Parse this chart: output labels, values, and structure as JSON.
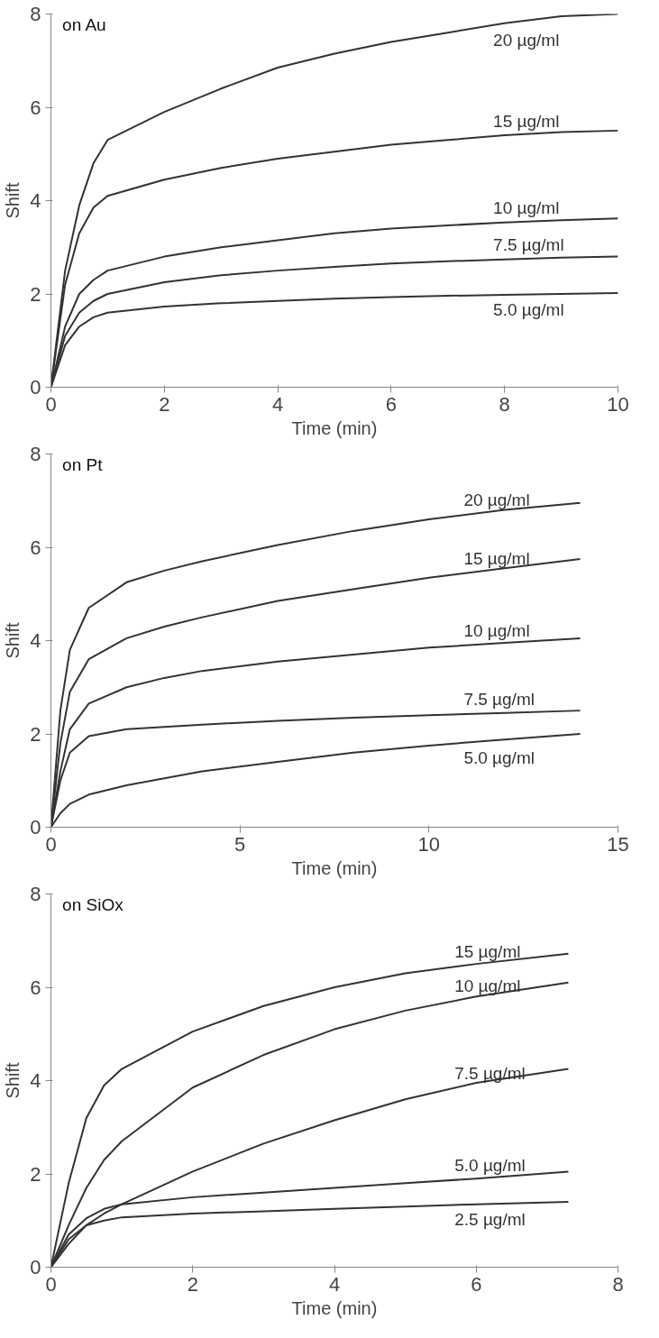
{
  "chart_data": [
    {
      "type": "line",
      "xlabel": "Time (min)",
      "ylabel": "Shift",
      "annotations": [
        "on Au"
      ],
      "xlim": [
        0,
        10
      ],
      "ylim": [
        0,
        8
      ],
      "xticks": [
        0,
        2,
        4,
        6,
        8,
        10
      ],
      "yticks": [
        0,
        2,
        4,
        6,
        8
      ],
      "grid": false,
      "x": [
        0,
        0.25,
        0.5,
        0.75,
        1,
        2,
        3,
        4,
        5,
        6,
        7,
        8,
        9,
        10
      ],
      "series": [
        {
          "name": "20 µg/ml",
          "color": "#333333",
          "values": [
            0,
            2.5,
            3.9,
            4.8,
            5.3,
            5.9,
            6.4,
            6.85,
            7.15,
            7.4,
            7.6,
            7.8,
            7.95,
            8.0
          ]
        },
        {
          "name": "15 µg/ml",
          "color": "#333333",
          "values": [
            0,
            2.2,
            3.3,
            3.85,
            4.1,
            4.45,
            4.7,
            4.9,
            5.05,
            5.2,
            5.3,
            5.4,
            5.47,
            5.5
          ]
        },
        {
          "name": "10 µg/ml",
          "color": "#333333",
          "values": [
            0,
            1.3,
            2.0,
            2.3,
            2.5,
            2.8,
            3.0,
            3.15,
            3.3,
            3.4,
            3.47,
            3.53,
            3.58,
            3.62
          ]
        },
        {
          "name": "7.5 µg/ml",
          "color": "#333333",
          "values": [
            0,
            1.1,
            1.6,
            1.85,
            2.0,
            2.25,
            2.4,
            2.5,
            2.58,
            2.65,
            2.7,
            2.74,
            2.78,
            2.8
          ]
        },
        {
          "name": "5.0 µg/ml",
          "color": "#333333",
          "values": [
            0,
            0.9,
            1.3,
            1.5,
            1.6,
            1.73,
            1.8,
            1.85,
            1.9,
            1.93,
            1.96,
            1.98,
            2.0,
            2.02
          ]
        }
      ]
    },
    {
      "type": "line",
      "xlabel": "Time (min)",
      "ylabel": "Shift",
      "annotations": [
        "on Pt"
      ],
      "xlim": [
        0,
        15
      ],
      "ylim": [
        0,
        8
      ],
      "xticks": [
        0,
        5,
        10,
        15
      ],
      "yticks": [
        0,
        2,
        4,
        6,
        8
      ],
      "grid": false,
      "x": [
        0,
        0.25,
        0.5,
        1,
        2,
        3,
        4,
        6,
        8,
        10,
        12,
        14
      ],
      "series": [
        {
          "name": "20 µg/ml",
          "color": "#333333",
          "values": [
            0,
            2.5,
            3.8,
            4.7,
            5.25,
            5.5,
            5.7,
            6.05,
            6.35,
            6.6,
            6.8,
            6.95
          ]
        },
        {
          "name": "15 µg/ml",
          "color": "#333333",
          "values": [
            0,
            1.8,
            2.9,
            3.6,
            4.05,
            4.3,
            4.5,
            4.85,
            5.1,
            5.35,
            5.55,
            5.75
          ]
        },
        {
          "name": "10 µg/ml",
          "color": "#333333",
          "values": [
            0,
            1.2,
            2.1,
            2.65,
            3.0,
            3.2,
            3.35,
            3.55,
            3.7,
            3.85,
            3.95,
            4.05
          ]
        },
        {
          "name": "7.5 µg/ml",
          "color": "#333333",
          "values": [
            0,
            1.0,
            1.6,
            1.95,
            2.1,
            2.15,
            2.2,
            2.28,
            2.35,
            2.4,
            2.45,
            2.5
          ]
        },
        {
          "name": "5.0 µg/ml",
          "color": "#333333",
          "values": [
            0,
            0.3,
            0.5,
            0.7,
            0.9,
            1.05,
            1.2,
            1.4,
            1.6,
            1.75,
            1.88,
            2.0
          ]
        }
      ]
    },
    {
      "type": "line",
      "xlabel": "Time (min)",
      "ylabel": "Shift",
      "annotations": [
        "on SiOx"
      ],
      "xlim": [
        0,
        8
      ],
      "ylim": [
        0,
        8
      ],
      "xticks": [
        0,
        2,
        4,
        6,
        8
      ],
      "yticks": [
        0,
        2,
        4,
        6,
        8
      ],
      "grid": false,
      "x": [
        0,
        0.25,
        0.5,
        0.75,
        1,
        2,
        3,
        4,
        5,
        6,
        7.3
      ],
      "series": [
        {
          "name": "15 µg/ml",
          "color": "#333333",
          "values": [
            0,
            1.8,
            3.2,
            3.9,
            4.25,
            5.05,
            5.6,
            6.0,
            6.3,
            6.5,
            6.72
          ]
        },
        {
          "name": "10 µg/ml",
          "color": "#333333",
          "values": [
            0,
            0.9,
            1.7,
            2.3,
            2.7,
            3.85,
            4.55,
            5.1,
            5.5,
            5.8,
            6.1
          ]
        },
        {
          "name": "7.5 µg/ml",
          "color": "#333333",
          "values": [
            0,
            0.5,
            0.9,
            1.15,
            1.35,
            2.05,
            2.65,
            3.15,
            3.6,
            3.95,
            4.25
          ]
        },
        {
          "name": "5.0 µg/ml",
          "color": "#333333",
          "values": [
            0,
            0.7,
            1.05,
            1.25,
            1.35,
            1.5,
            1.6,
            1.7,
            1.8,
            1.9,
            2.05
          ]
        },
        {
          "name": "2.5 µg/ml",
          "color": "#333333",
          "values": [
            0,
            0.6,
            0.9,
            1.0,
            1.07,
            1.15,
            1.2,
            1.25,
            1.3,
            1.35,
            1.4
          ]
        }
      ]
    }
  ]
}
